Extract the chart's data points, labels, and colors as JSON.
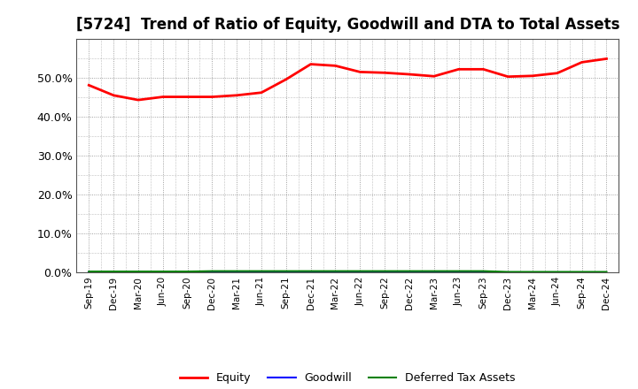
{
  "title": "[5724]  Trend of Ratio of Equity, Goodwill and DTA to Total Assets",
  "x_labels": [
    "Sep-19",
    "Dec-19",
    "Mar-20",
    "Jun-20",
    "Sep-20",
    "Dec-20",
    "Mar-21",
    "Jun-21",
    "Sep-21",
    "Dec-21",
    "Mar-22",
    "Jun-22",
    "Sep-22",
    "Dec-22",
    "Mar-23",
    "Jun-23",
    "Sep-23",
    "Dec-23",
    "Mar-24",
    "Jun-24",
    "Sep-24",
    "Dec-24"
  ],
  "equity": [
    0.481,
    0.455,
    0.443,
    0.451,
    0.451,
    0.451,
    0.455,
    0.462,
    0.496,
    0.535,
    0.531,
    0.515,
    0.513,
    0.509,
    0.504,
    0.522,
    0.522,
    0.503,
    0.505,
    0.512,
    0.54,
    0.549
  ],
  "goodwill": [
    0.0,
    0.0,
    0.0,
    0.0,
    0.0,
    0.0,
    0.0,
    0.0,
    0.0,
    0.0,
    0.0,
    0.0,
    0.0,
    0.0,
    0.0,
    0.0,
    0.0,
    0.0,
    0.0,
    0.0,
    0.0,
    0.0
  ],
  "dta": [
    0.002,
    0.002,
    0.002,
    0.002,
    0.002,
    0.003,
    0.003,
    0.003,
    0.003,
    0.003,
    0.003,
    0.003,
    0.003,
    0.003,
    0.003,
    0.003,
    0.003,
    0.001,
    0.001,
    0.001,
    0.001,
    0.001
  ],
  "equity_color": "#FF0000",
  "goodwill_color": "#0000FF",
  "dta_color": "#008000",
  "ylim": [
    0.0,
    0.6
  ],
  "yticks": [
    0.0,
    0.1,
    0.2,
    0.3,
    0.4,
    0.5
  ],
  "background_color": "#FFFFFF",
  "plot_bg_color": "#FFFFFF",
  "grid_color": "#888888",
  "title_fontsize": 12,
  "legend_labels": [
    "Equity",
    "Goodwill",
    "Deferred Tax Assets"
  ]
}
